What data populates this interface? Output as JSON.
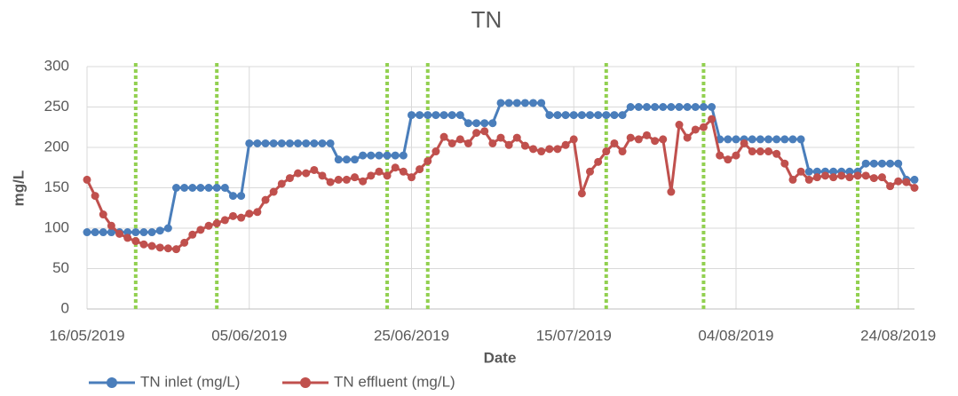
{
  "chart_data": {
    "type": "line",
    "title": "TN",
    "xlabel": "Date",
    "ylabel": "mg/L",
    "x": [
      "2019-05-16",
      "2019-05-17",
      "2019-05-18",
      "2019-05-19",
      "2019-05-20",
      "2019-05-21",
      "2019-05-22",
      "2019-05-23",
      "2019-05-24",
      "2019-05-25",
      "2019-05-26",
      "2019-05-27",
      "2019-05-28",
      "2019-05-29",
      "2019-05-30",
      "2019-05-31",
      "2019-06-01",
      "2019-06-02",
      "2019-06-03",
      "2019-06-04",
      "2019-06-05",
      "2019-06-06",
      "2019-06-07",
      "2019-06-08",
      "2019-06-09",
      "2019-06-10",
      "2019-06-11",
      "2019-06-12",
      "2019-06-13",
      "2019-06-14",
      "2019-06-15",
      "2019-06-16",
      "2019-06-17",
      "2019-06-18",
      "2019-06-19",
      "2019-06-20",
      "2019-06-21",
      "2019-06-22",
      "2019-06-23",
      "2019-06-24",
      "2019-06-25",
      "2019-06-26",
      "2019-06-27",
      "2019-06-28",
      "2019-06-29",
      "2019-06-30",
      "2019-07-01",
      "2019-07-02",
      "2019-07-03",
      "2019-07-04",
      "2019-07-05",
      "2019-07-06",
      "2019-07-07",
      "2019-07-08",
      "2019-07-09",
      "2019-07-10",
      "2019-07-11",
      "2019-07-12",
      "2019-07-13",
      "2019-07-14",
      "2019-07-15",
      "2019-07-16",
      "2019-07-17",
      "2019-07-18",
      "2019-07-19",
      "2019-07-20",
      "2019-07-21",
      "2019-07-22",
      "2019-07-23",
      "2019-07-24",
      "2019-07-25",
      "2019-07-26",
      "2019-07-27",
      "2019-07-28",
      "2019-07-29",
      "2019-07-30",
      "2019-07-31",
      "2019-08-01",
      "2019-08-02",
      "2019-08-03",
      "2019-08-04",
      "2019-08-05",
      "2019-08-06",
      "2019-08-07",
      "2019-08-08",
      "2019-08-09",
      "2019-08-10",
      "2019-08-11",
      "2019-08-12",
      "2019-08-13",
      "2019-08-14",
      "2019-08-15",
      "2019-08-16",
      "2019-08-17",
      "2019-08-18",
      "2019-08-19",
      "2019-08-20",
      "2019-08-21",
      "2019-08-22",
      "2019-08-23",
      "2019-08-24",
      "2019-08-25",
      "2019-08-26"
    ],
    "series": [
      {
        "name": "TN inlet (mg/L)",
        "color": "#4a7ebb",
        "values": [
          95,
          95,
          95,
          95,
          95,
          95,
          95,
          95,
          95,
          97,
          100,
          150,
          150,
          150,
          150,
          150,
          150,
          150,
          140,
          140,
          205,
          205,
          205,
          205,
          205,
          205,
          205,
          205,
          205,
          205,
          205,
          185,
          185,
          185,
          190,
          190,
          190,
          190,
          190,
          190,
          240,
          240,
          240,
          240,
          240,
          240,
          240,
          230,
          230,
          230,
          230,
          255,
          255,
          255,
          255,
          255,
          255,
          240,
          240,
          240,
          240,
          240,
          240,
          240,
          240,
          240,
          240,
          250,
          250,
          250,
          250,
          250,
          250,
          250,
          250,
          250,
          250,
          250,
          210,
          210,
          210,
          210,
          210,
          210,
          210,
          210,
          210,
          210,
          210,
          170,
          170,
          170,
          170,
          170,
          170,
          170,
          180,
          180,
          180,
          180,
          180,
          160,
          160
        ]
      },
      {
        "name": "TN effluent (mg/L)",
        "color": "#c0504d",
        "values": [
          160,
          140,
          117,
          103,
          93,
          88,
          84,
          80,
          78,
          76,
          75,
          74,
          82,
          92,
          98,
          103,
          106,
          110,
          115,
          113,
          118,
          120,
          135,
          145,
          155,
          162,
          168,
          168,
          172,
          165,
          157,
          160,
          160,
          163,
          158,
          165,
          170,
          165,
          175,
          170,
          163,
          173,
          183,
          195,
          213,
          205,
          210,
          205,
          218,
          220,
          205,
          212,
          203,
          212,
          202,
          198,
          195,
          198,
          198,
          203,
          210,
          143,
          170,
          182,
          195,
          205,
          195,
          212,
          210,
          215,
          208,
          210,
          145,
          228,
          212,
          222,
          225,
          235,
          190,
          185,
          190,
          205,
          195,
          195,
          195,
          192,
          180,
          160,
          170,
          160,
          163,
          165,
          163,
          165,
          163,
          165,
          165,
          162,
          163,
          152,
          158,
          157,
          150
        ]
      }
    ],
    "xlim": [
      "2019-05-16",
      "2019-08-26"
    ],
    "xticks": [
      {
        "value": "2019-05-16",
        "label": "16/05/2019"
      },
      {
        "value": "2019-06-05",
        "label": "05/06/2019"
      },
      {
        "value": "2019-06-25",
        "label": "25/06/2019"
      },
      {
        "value": "2019-07-15",
        "label": "15/07/2019"
      },
      {
        "value": "2019-08-04",
        "label": "04/08/2019"
      },
      {
        "value": "2019-08-24",
        "label": "24/08/2019"
      }
    ],
    "ylim": [
      0,
      300
    ],
    "yticks": [
      0,
      50,
      100,
      150,
      200,
      250,
      300
    ],
    "grid": true,
    "legend": "bottom",
    "vlines": {
      "color": "#92d050",
      "x": [
        "2019-05-22",
        "2019-06-01",
        "2019-06-22",
        "2019-06-27",
        "2019-07-19",
        "2019-07-31",
        "2019-08-19"
      ]
    }
  }
}
